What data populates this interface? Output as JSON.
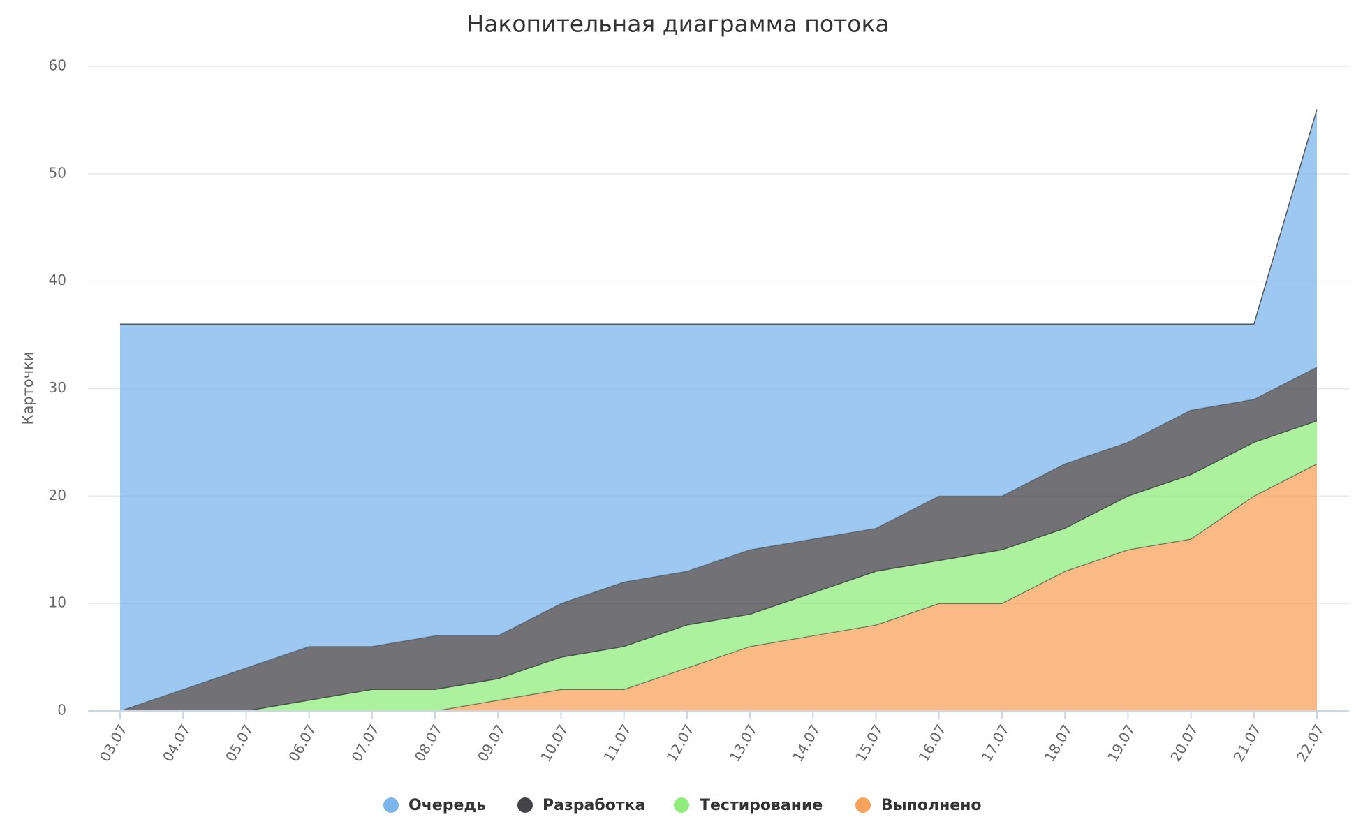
{
  "chart_data": {
    "type": "stacked-area",
    "title": "Накопительная диаграмма потока",
    "y_label": "Карточки",
    "categories": [
      "03.07",
      "04.07",
      "05.07",
      "06.07",
      "07.07",
      "08.07",
      "09.07",
      "10.07",
      "11.07",
      "12.07",
      "13.07",
      "14.07",
      "15.07",
      "16.07",
      "17.07",
      "18.07",
      "19.07",
      "20.07",
      "21.07",
      "22.07"
    ],
    "series": [
      {
        "name": "Очередь",
        "color": "#7cb5ec",
        "values": [
          36,
          34,
          32,
          30,
          30,
          29,
          29,
          26,
          24,
          23,
          21,
          20,
          19,
          16,
          16,
          13,
          11,
          8,
          7,
          24
        ]
      },
      {
        "name": "Разработка",
        "color": "#434348",
        "values": [
          0,
          2,
          4,
          5,
          4,
          5,
          4,
          5,
          6,
          5,
          6,
          5,
          4,
          6,
          5,
          6,
          5,
          6,
          4,
          5
        ]
      },
      {
        "name": "Тестирование",
        "color": "#90ed7d",
        "values": [
          0,
          0,
          0,
          1,
          2,
          2,
          2,
          3,
          4,
          4,
          3,
          4,
          5,
          4,
          5,
          4,
          5,
          6,
          5,
          4
        ]
      },
      {
        "name": "Выполнено",
        "color": "#f7a35c",
        "values": [
          0,
          0,
          0,
          0,
          0,
          0,
          1,
          2,
          2,
          4,
          6,
          7,
          8,
          10,
          10,
          13,
          15,
          16,
          20,
          23
        ]
      }
    ],
    "ylim": [
      0,
      60
    ],
    "yticks": [
      0,
      10,
      20,
      30,
      40,
      50,
      60
    ],
    "grid": true
  }
}
